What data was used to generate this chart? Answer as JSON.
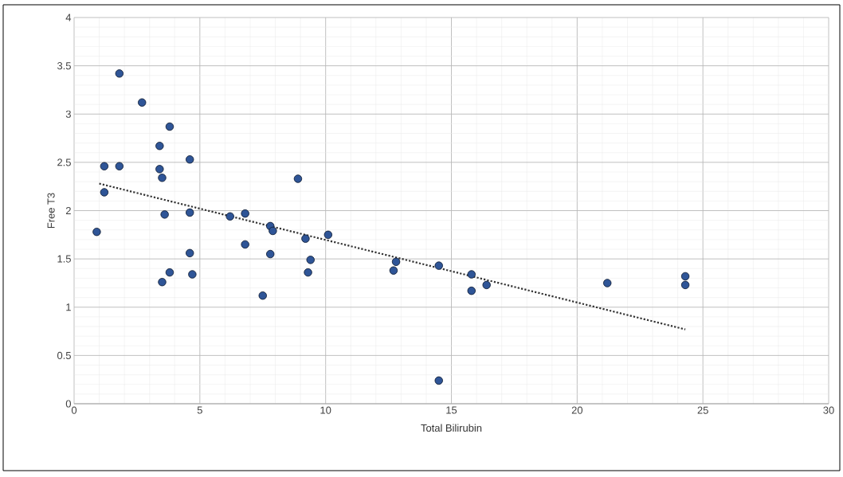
{
  "chart_data": {
    "type": "scatter",
    "xlabel": "Total Bilirubin",
    "ylabel": "Free T3",
    "xlim": [
      0,
      30
    ],
    "ylim": [
      0,
      4
    ],
    "xticks": [
      0,
      5,
      10,
      15,
      20,
      25,
      30
    ],
    "yticks": [
      0,
      0.5,
      1,
      1.5,
      2,
      2.5,
      3,
      3.5,
      4
    ],
    "grid": true,
    "series": [
      {
        "color": "#2f5597",
        "marker": "circle",
        "x": [
          0.9,
          1.2,
          1.2,
          1.8,
          1.8,
          2.7,
          3.4,
          3.4,
          3.5,
          3.8,
          3.6,
          3.5,
          3.8,
          4.6,
          4.6,
          4.6,
          4.7,
          6.2,
          6.8,
          6.8,
          7.5,
          7.8,
          7.9,
          7.8,
          8.9,
          9.2,
          9.4,
          9.3,
          10.1,
          12.7,
          12.8,
          14.5,
          14.5,
          15.8,
          15.8,
          16.4,
          21.2,
          24.3,
          24.3
        ],
        "values": [
          1.78,
          2.46,
          2.19,
          3.42,
          2.46,
          3.12,
          2.67,
          2.43,
          2.34,
          2.87,
          1.96,
          1.26,
          1.36,
          2.53,
          1.98,
          1.56,
          1.34,
          1.94,
          1.97,
          1.65,
          1.12,
          1.84,
          1.79,
          1.55,
          2.33,
          1.71,
          1.49,
          1.36,
          1.75,
          1.38,
          1.47,
          1.43,
          0.24,
          1.34,
          1.17,
          1.23,
          1.25,
          1.32,
          1.23
        ]
      },
      {
        "type": "line",
        "color": "#333333",
        "line_style": "dotted",
        "marker": "none",
        "x": [
          1,
          24.3
        ],
        "values": [
          2.28,
          0.77
        ]
      }
    ]
  }
}
